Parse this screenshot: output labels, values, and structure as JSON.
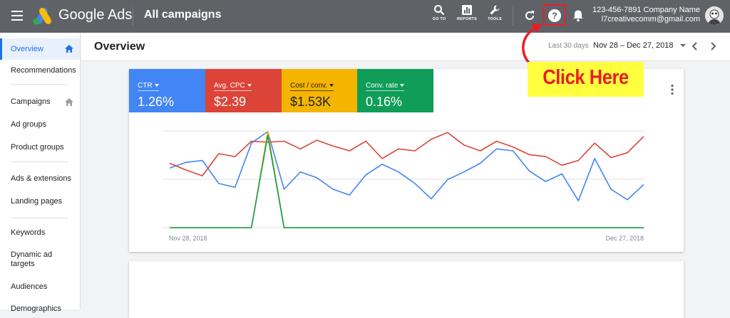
{
  "app": {
    "brand": "Google Ads",
    "view_title": "All campaigns"
  },
  "toolbar": {
    "goto_label": "GO TO",
    "reports_label": "REPORTS",
    "tools_label": "TOOLS"
  },
  "account": {
    "line1": "123-456-7891 Company Name",
    "line2": "l7creativecomm@gmail.com"
  },
  "sidebar": {
    "items": [
      {
        "label": "Overview",
        "active": true,
        "home": true
      },
      {
        "label": "Recommendations"
      },
      {
        "label": "Campaigns",
        "home": true
      },
      {
        "label": "Ad groups"
      },
      {
        "label": "Product groups"
      },
      {
        "label": "Ads & extensions"
      },
      {
        "label": "Landing pages"
      },
      {
        "label": "Keywords"
      },
      {
        "label": "Dynamic ad targets"
      },
      {
        "label": "Audiences"
      },
      {
        "label": "Demographics"
      }
    ]
  },
  "header": {
    "title": "Overview",
    "period_label": "Last 30 days",
    "date_range": "Nov 28 – Dec 27, 2018"
  },
  "metrics": [
    {
      "label": "CTR",
      "value": "1.26%",
      "color": "#4285f4"
    },
    {
      "label": "Avg. CPC",
      "value": "$2.39",
      "color": "#db4437"
    },
    {
      "label": "Cost / conv.",
      "value": "$1.53K",
      "color": "#f4b400"
    },
    {
      "label": "Conv. rate",
      "value": "0.16%",
      "color": "#0f9d58"
    }
  ],
  "annotation": {
    "text": "Click Here",
    "color": "#ea1d25",
    "background": "#ffff3f"
  },
  "chart_data": {
    "type": "line",
    "x_start_label": "Nov 28, 2018",
    "x_end_label": "Dec 27, 2018",
    "grid": true,
    "series": [
      {
        "color": "#4285f4",
        "values": [
          0.62,
          0.68,
          0.7,
          0.46,
          0.42,
          0.88,
          1.0,
          0.4,
          0.58,
          0.52,
          0.4,
          0.34,
          0.55,
          0.66,
          0.58,
          0.46,
          0.3,
          0.5,
          0.58,
          0.67,
          0.82,
          0.8,
          0.59,
          0.48,
          0.56,
          0.28,
          0.72,
          0.4,
          0.29,
          0.45
        ]
      },
      {
        "color": "#db4437",
        "values": [
          0.67,
          0.6,
          0.54,
          0.77,
          0.74,
          0.9,
          0.89,
          0.9,
          0.82,
          0.91,
          0.85,
          0.8,
          0.9,
          0.72,
          0.82,
          0.8,
          0.92,
          0.99,
          0.86,
          0.8,
          0.9,
          0.84,
          0.76,
          0.74,
          0.65,
          0.7,
          0.88,
          0.73,
          0.78,
          0.95
        ]
      },
      {
        "color": "#f4b400",
        "values": [
          0,
          0,
          0,
          0,
          0,
          0,
          1.0,
          0,
          0,
          0,
          0,
          0,
          0,
          0,
          0,
          0,
          0,
          0,
          0,
          0,
          0,
          0,
          0,
          0,
          0,
          0,
          0,
          0,
          0,
          0
        ]
      },
      {
        "color": "#0f9d58",
        "values": [
          0,
          0,
          0,
          0,
          0,
          0,
          0.96,
          0,
          0,
          0,
          0,
          0,
          0,
          0,
          0,
          0,
          0,
          0,
          0,
          0,
          0,
          0,
          0,
          0,
          0,
          0,
          0,
          0,
          0,
          0
        ]
      }
    ]
  }
}
